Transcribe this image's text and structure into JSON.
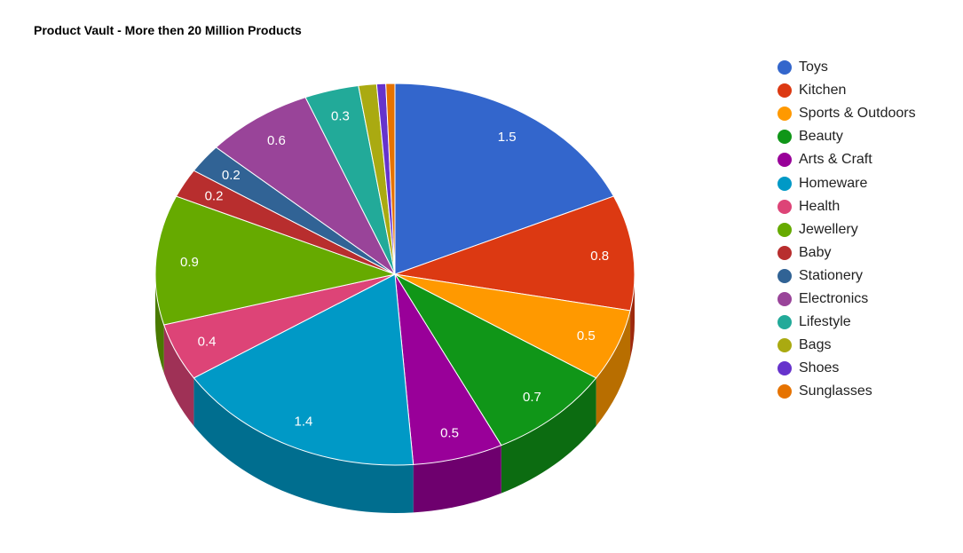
{
  "chart_data": {
    "type": "pie",
    "title": "Product Vault - More then 20 Million Products",
    "three_d": true,
    "legend_position": "right",
    "slices": [
      {
        "label": "Toys",
        "value": 1.5,
        "display": "1.5",
        "color": "#3366CC"
      },
      {
        "label": "Kitchen",
        "value": 0.8,
        "display": "0.8",
        "color": "#DC3912"
      },
      {
        "label": "Sports & Outdoors",
        "value": 0.5,
        "display": "0.5",
        "color": "#FF9900"
      },
      {
        "label": "Beauty",
        "value": 0.7,
        "display": "0.7",
        "color": "#109618"
      },
      {
        "label": "Arts & Craft",
        "value": 0.5,
        "display": "0.5",
        "color": "#990099"
      },
      {
        "label": "Homeware",
        "value": 1.4,
        "display": "1.4",
        "color": "#0099C6"
      },
      {
        "label": "Health",
        "value": 0.4,
        "display": "0.4",
        "color": "#DD4477"
      },
      {
        "label": "Jewellery",
        "value": 0.9,
        "display": "0.9",
        "color": "#66AA00"
      },
      {
        "label": "Baby",
        "value": 0.2,
        "display": "0.2",
        "color": "#B82E2E"
      },
      {
        "label": "Stationery",
        "value": 0.2,
        "display": "0.2",
        "color": "#316395"
      },
      {
        "label": "Electronics",
        "value": 0.6,
        "display": "0.6",
        "color": "#994499"
      },
      {
        "label": "Lifestyle",
        "value": 0.3,
        "display": "0.3",
        "color": "#22AA99"
      },
      {
        "label": "Bags",
        "value": 0.1,
        "display": "",
        "color": "#AAAA11"
      },
      {
        "label": "Shoes",
        "value": 0.05,
        "display": "",
        "color": "#6633CC"
      },
      {
        "label": "Sunglasses",
        "value": 0.05,
        "display": "",
        "color": "#E67300"
      }
    ]
  }
}
